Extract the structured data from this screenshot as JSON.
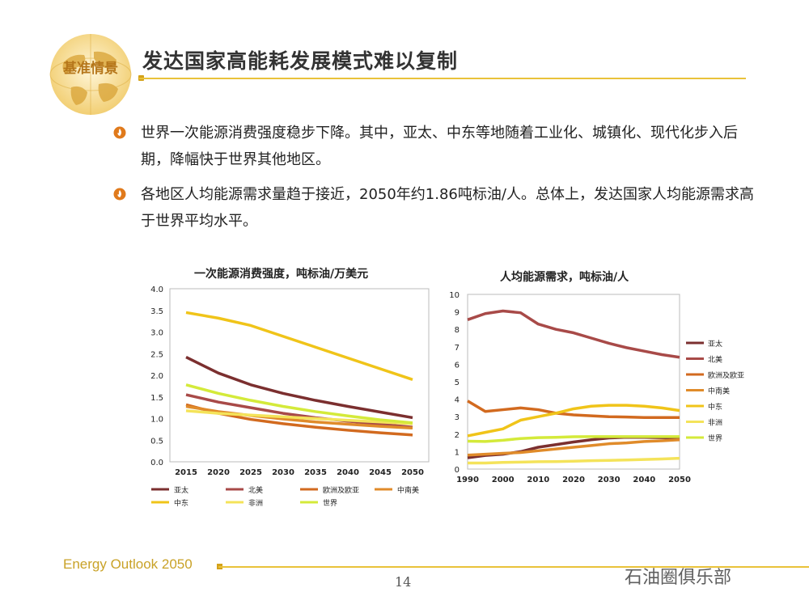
{
  "header": {
    "badge": "基准情景",
    "title": "发达国家高能耗发展模式难以复制"
  },
  "bullets": [
    {
      "text": "世界一次能源消费强度稳步下降。其中，亚太、中东等地随着工业化、城镇化、现代化步入后期，降幅快于世界其他地区。"
    },
    {
      "text": "各地区人均能源需求量趋于接近，2050年约1.86吨标油/人。总体上，发达国家人均能源需求高于世界平均水平。"
    }
  ],
  "footer": {
    "brand": "Energy Outlook 2050",
    "page": "14",
    "watermark": "石油圈俱乐部"
  },
  "colors": {
    "asia_pacific": "#7b2f2f",
    "north_america": "#a84a48",
    "europe_eurasia": "#d26a1f",
    "latin_america": "#e08b2a",
    "middle_east": "#f0c419",
    "africa": "#f4e35a",
    "world": "#d4ea3a"
  },
  "chart_data": [
    {
      "type": "line",
      "title": "一次能源消费强度，吨标油/万美元",
      "x": [
        "2015",
        "2020",
        "2025",
        "2030",
        "2035",
        "2040",
        "2045",
        "2050"
      ],
      "ylim": [
        0,
        4
      ],
      "yticks": [
        "0.0",
        "0.5",
        "1.0",
        "1.5",
        "2.0",
        "2.5",
        "3.0",
        "3.5",
        "4.0"
      ],
      "legend_position": "bottom",
      "series": [
        {
          "name": "亚太",
          "color_key": "asia_pacific",
          "values": [
            2.42,
            2.05,
            1.78,
            1.58,
            1.42,
            1.28,
            1.15,
            1.02
          ]
        },
        {
          "name": "北美",
          "color_key": "north_america",
          "values": [
            1.55,
            1.38,
            1.25,
            1.12,
            1.02,
            0.94,
            0.87,
            0.8
          ]
        },
        {
          "name": "欧洲及欧亚",
          "color_key": "europe_eurasia",
          "values": [
            1.32,
            1.12,
            0.98,
            0.88,
            0.8,
            0.73,
            0.67,
            0.62
          ]
        },
        {
          "name": "中南美",
          "color_key": "latin_america",
          "values": [
            1.28,
            1.16,
            1.07,
            0.99,
            0.92,
            0.87,
            0.82,
            0.78
          ]
        },
        {
          "name": "中东",
          "color_key": "middle_east",
          "values": [
            3.45,
            3.32,
            3.15,
            2.9,
            2.65,
            2.4,
            2.15,
            1.9
          ]
        },
        {
          "name": "非洲",
          "color_key": "africa",
          "values": [
            1.18,
            1.12,
            1.08,
            1.04,
            1.0,
            0.96,
            0.92,
            0.88
          ]
        },
        {
          "name": "世界",
          "color_key": "world",
          "values": [
            1.78,
            1.58,
            1.42,
            1.28,
            1.16,
            1.06,
            0.97,
            0.9
          ]
        }
      ]
    },
    {
      "type": "line",
      "title": "人均能源需求，吨标油/人",
      "x": [
        "1990",
        "2000",
        "2010",
        "2020",
        "2030",
        "2040",
        "2050"
      ],
      "xlim": [
        1990,
        2050
      ],
      "ylim": [
        0,
        10
      ],
      "yticks": [
        "0",
        "1",
        "2",
        "3",
        "4",
        "5",
        "6",
        "7",
        "8",
        "9",
        "10"
      ],
      "legend_position": "right",
      "series": [
        {
          "name": "亚太",
          "color_key": "asia_pacific",
          "x": [
            1990,
            1995,
            2000,
            2005,
            2010,
            2015,
            2020,
            2025,
            2030,
            2035,
            2040,
            2045,
            2050
          ],
          "values": [
            0.65,
            0.78,
            0.85,
            1.0,
            1.25,
            1.4,
            1.55,
            1.68,
            1.78,
            1.82,
            1.82,
            1.8,
            1.78
          ]
        },
        {
          "name": "北美",
          "color_key": "north_america",
          "x": [
            1990,
            1995,
            2000,
            2005,
            2010,
            2015,
            2020,
            2025,
            2030,
            2035,
            2040,
            2045,
            2050
          ],
          "values": [
            8.55,
            8.9,
            9.05,
            8.95,
            8.3,
            8.0,
            7.8,
            7.5,
            7.2,
            6.95,
            6.75,
            6.55,
            6.4
          ]
        },
        {
          "name": "欧洲及欧亚",
          "color_key": "europe_eurasia",
          "x": [
            1990,
            1995,
            2000,
            2005,
            2010,
            2015,
            2020,
            2025,
            2030,
            2035,
            2040,
            2045,
            2050
          ],
          "values": [
            3.9,
            3.3,
            3.4,
            3.5,
            3.4,
            3.2,
            3.1,
            3.05,
            3.0,
            2.98,
            2.95,
            2.95,
            2.95
          ]
        },
        {
          "name": "中南美",
          "color_key": "latin_america",
          "x": [
            1990,
            1995,
            2000,
            2005,
            2010,
            2015,
            2020,
            2025,
            2030,
            2035,
            2040,
            2045,
            2050
          ],
          "values": [
            0.8,
            0.85,
            0.9,
            0.95,
            1.05,
            1.15,
            1.25,
            1.35,
            1.45,
            1.5,
            1.58,
            1.62,
            1.68
          ]
        },
        {
          "name": "中东",
          "color_key": "middle_east",
          "x": [
            1990,
            1995,
            2000,
            2005,
            2010,
            2015,
            2020,
            2025,
            2030,
            2035,
            2040,
            2045,
            2050
          ],
          "values": [
            1.9,
            2.1,
            2.3,
            2.8,
            3.0,
            3.2,
            3.45,
            3.6,
            3.65,
            3.65,
            3.6,
            3.5,
            3.35
          ]
        },
        {
          "name": "非洲",
          "color_key": "africa",
          "x": [
            1990,
            1995,
            2000,
            2005,
            2010,
            2015,
            2020,
            2025,
            2030,
            2035,
            2040,
            2045,
            2050
          ],
          "values": [
            0.35,
            0.35,
            0.38,
            0.4,
            0.42,
            0.43,
            0.45,
            0.48,
            0.5,
            0.52,
            0.55,
            0.58,
            0.62
          ]
        },
        {
          "name": "世界",
          "color_key": "world",
          "x": [
            1990,
            1995,
            2000,
            2005,
            2010,
            2015,
            2020,
            2025,
            2030,
            2035,
            2040,
            2045,
            2050
          ],
          "values": [
            1.6,
            1.58,
            1.65,
            1.75,
            1.8,
            1.82,
            1.85,
            1.86,
            1.86,
            1.86,
            1.86,
            1.86,
            1.86
          ]
        }
      ]
    }
  ]
}
